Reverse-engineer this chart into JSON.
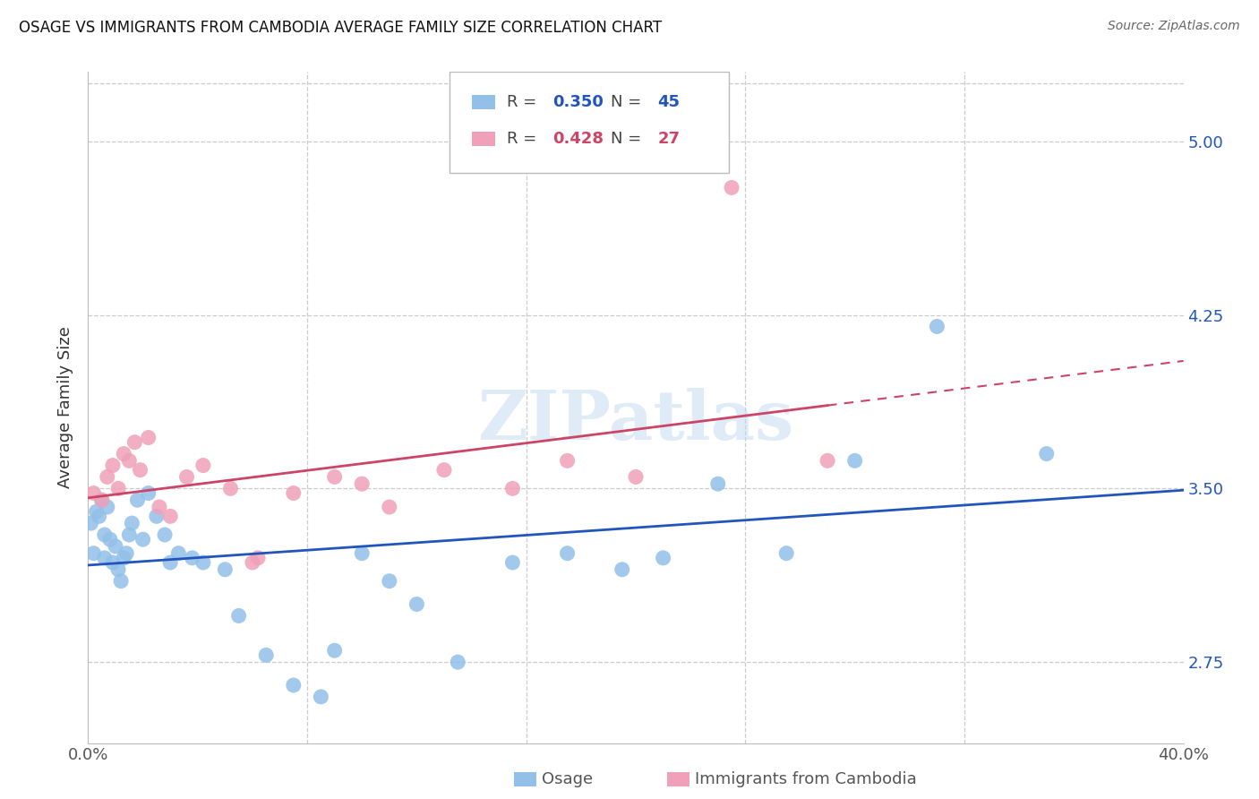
{
  "title": "OSAGE VS IMMIGRANTS FROM CAMBODIA AVERAGE FAMILY SIZE CORRELATION CHART",
  "source": "Source: ZipAtlas.com",
  "ylabel": "Average Family Size",
  "watermark": "ZIPatlas",
  "osage_color": "#92C0E8",
  "cambodia_color": "#F0A0B8",
  "osage_line_color": "#2255BB",
  "cambodia_line_color": "#CC4466",
  "ytick_values": [
    2.75,
    3.5,
    4.25,
    5.0
  ],
  "xmin": 0.0,
  "xmax": 0.4,
  "ymin": 2.4,
  "ymax": 5.3,
  "osage_R": 0.35,
  "osage_N": 45,
  "cambodia_R": 0.428,
  "cambodia_N": 27,
  "osage_x": [
    0.001,
    0.002,
    0.003,
    0.004,
    0.005,
    0.006,
    0.006,
    0.007,
    0.008,
    0.009,
    0.01,
    0.011,
    0.012,
    0.013,
    0.014,
    0.015,
    0.016,
    0.018,
    0.02,
    0.022,
    0.025,
    0.028,
    0.03,
    0.033,
    0.038,
    0.042,
    0.05,
    0.055,
    0.065,
    0.075,
    0.085,
    0.09,
    0.1,
    0.11,
    0.12,
    0.135,
    0.155,
    0.175,
    0.195,
    0.21,
    0.23,
    0.255,
    0.28,
    0.31,
    0.35
  ],
  "osage_y": [
    3.35,
    3.22,
    3.4,
    3.38,
    3.45,
    3.3,
    3.2,
    3.42,
    3.28,
    3.18,
    3.25,
    3.15,
    3.1,
    3.2,
    3.22,
    3.3,
    3.35,
    3.45,
    3.28,
    3.48,
    3.38,
    3.3,
    3.18,
    3.22,
    3.2,
    3.18,
    3.15,
    2.95,
    2.78,
    2.65,
    2.6,
    2.8,
    3.22,
    3.1,
    3.0,
    2.75,
    3.18,
    3.22,
    3.15,
    3.2,
    3.52,
    3.22,
    3.62,
    4.2,
    3.65
  ],
  "cambodia_x": [
    0.002,
    0.005,
    0.007,
    0.009,
    0.011,
    0.013,
    0.015,
    0.017,
    0.019,
    0.022,
    0.026,
    0.03,
    0.036,
    0.042,
    0.052,
    0.062,
    0.075,
    0.09,
    0.11,
    0.13,
    0.155,
    0.175,
    0.2,
    0.235,
    0.27,
    0.1,
    0.06
  ],
  "cambodia_y": [
    3.48,
    3.45,
    3.55,
    3.6,
    3.5,
    3.65,
    3.62,
    3.7,
    3.58,
    3.72,
    3.42,
    3.38,
    3.55,
    3.6,
    3.5,
    3.2,
    3.48,
    3.55,
    3.42,
    3.58,
    3.5,
    3.62,
    3.55,
    4.8,
    3.62,
    3.52,
    3.18
  ],
  "xtick_positions": [
    0.0,
    0.08,
    0.16,
    0.24,
    0.32,
    0.4
  ],
  "xtick_labels": [
    "0.0%",
    "",
    "",
    "",
    "",
    "40.0%"
  ]
}
